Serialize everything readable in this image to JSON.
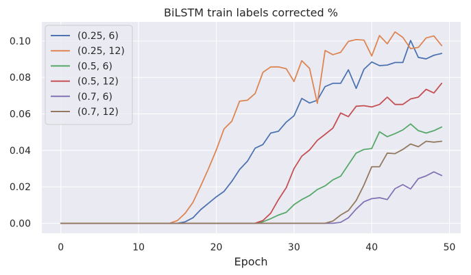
{
  "chart_data": {
    "type": "line",
    "title": "BiLSTM train labels corrected %",
    "xlabel": "Epoch",
    "ylabel": "",
    "xlim": [
      -2.45,
      51.45
    ],
    "ylim": [
      -0.0055,
      0.1105
    ],
    "xticks": [
      0,
      10,
      20,
      30,
      40,
      50
    ],
    "yticks": [
      0.0,
      0.02,
      0.04,
      0.06,
      0.08,
      0.1
    ],
    "ytick_labels": [
      "0.00",
      "0.02",
      "0.04",
      "0.06",
      "0.08",
      "0.10"
    ],
    "grid": true,
    "legend_position": "top-left",
    "x": [
      0,
      1,
      2,
      3,
      4,
      5,
      6,
      7,
      8,
      9,
      10,
      11,
      12,
      13,
      14,
      15,
      16,
      17,
      18,
      19,
      20,
      21,
      22,
      23,
      24,
      25,
      26,
      27,
      28,
      29,
      30,
      31,
      32,
      33,
      34,
      35,
      36,
      37,
      38,
      39,
      40,
      41,
      42,
      43,
      44,
      45,
      46,
      47,
      48,
      49
    ],
    "series": [
      {
        "name": "(0.25, 6)",
        "color": "#4c72b0",
        "values": [
          0,
          0,
          0,
          0,
          0,
          0,
          0,
          0,
          0,
          0,
          0,
          0,
          0,
          0,
          0,
          0,
          0.0008,
          0.003,
          0.0075,
          0.011,
          0.0145,
          0.0175,
          0.023,
          0.0295,
          0.034,
          0.0412,
          0.0432,
          0.0495,
          0.0505,
          0.0555,
          0.059,
          0.0685,
          0.066,
          0.0675,
          0.075,
          0.0768,
          0.0768,
          0.0842,
          0.074,
          0.0845,
          0.0885,
          0.0865,
          0.0868,
          0.0882,
          0.0882,
          0.1003,
          0.091,
          0.0902,
          0.0922,
          0.0932
        ]
      },
      {
        "name": "(0.25, 12)",
        "color": "#dd8452",
        "values": [
          0,
          0,
          0,
          0,
          0,
          0,
          0,
          0,
          0,
          0,
          0,
          0,
          0,
          0,
          0,
          0.0015,
          0.0055,
          0.0115,
          0.0205,
          0.03,
          0.0402,
          0.0518,
          0.056,
          0.067,
          0.0675,
          0.0712,
          0.0828,
          0.0858,
          0.0858,
          0.0848,
          0.0778,
          0.0892,
          0.085,
          0.0658,
          0.0948,
          0.0925,
          0.0938,
          0.0998,
          0.1008,
          0.1005,
          0.0918,
          0.103,
          0.0985,
          0.105,
          0.102,
          0.0958,
          0.0965,
          0.1017,
          0.1028,
          0.0975
        ]
      },
      {
        "name": "(0.5, 6)",
        "color": "#55a868",
        "values": [
          0,
          0,
          0,
          0,
          0,
          0,
          0,
          0,
          0,
          0,
          0,
          0,
          0,
          0,
          0,
          0,
          0,
          0,
          0,
          0,
          0,
          0,
          0,
          0,
          0,
          0,
          0.0008,
          0.0025,
          0.0045,
          0.006,
          0.0102,
          0.013,
          0.0152,
          0.0185,
          0.0205,
          0.0238,
          0.0258,
          0.0322,
          0.0385,
          0.0405,
          0.041,
          0.0502,
          0.0475,
          0.0492,
          0.0512,
          0.0545,
          0.0508,
          0.0495,
          0.0508,
          0.0528
        ]
      },
      {
        "name": "(0.5, 12)",
        "color": "#c44e52",
        "values": [
          0,
          0,
          0,
          0,
          0,
          0,
          0,
          0,
          0,
          0,
          0,
          0,
          0,
          0,
          0,
          0,
          0,
          0,
          0,
          0,
          0,
          0,
          0,
          0,
          0,
          0,
          0.0015,
          0.0055,
          0.013,
          0.0195,
          0.03,
          0.0368,
          0.0402,
          0.0455,
          0.0488,
          0.0522,
          0.0605,
          0.0585,
          0.0642,
          0.0645,
          0.0638,
          0.0652,
          0.0692,
          0.0652,
          0.0652,
          0.0682,
          0.0692,
          0.0735,
          0.0715,
          0.0768
        ]
      },
      {
        "name": "(0.7, 6)",
        "color": "#8172b3",
        "values": [
          0,
          0,
          0,
          0,
          0,
          0,
          0,
          0,
          0,
          0,
          0,
          0,
          0,
          0,
          0,
          0,
          0,
          0,
          0,
          0,
          0,
          0,
          0,
          0,
          0,
          0,
          0,
          0,
          0,
          0,
          0,
          0,
          0,
          0,
          0,
          0,
          0.0005,
          0.003,
          0.0078,
          0.0118,
          0.0135,
          0.014,
          0.013,
          0.019,
          0.0212,
          0.0188,
          0.0245,
          0.026,
          0.0282,
          0.0262
        ]
      },
      {
        "name": "(0.7, 12)",
        "color": "#937860",
        "values": [
          0,
          0,
          0,
          0,
          0,
          0,
          0,
          0,
          0,
          0,
          0,
          0,
          0,
          0,
          0,
          0,
          0,
          0,
          0,
          0,
          0,
          0,
          0,
          0,
          0,
          0,
          0,
          0,
          0,
          0,
          0,
          0,
          0,
          0,
          0,
          0.0012,
          0.0045,
          0.007,
          0.0125,
          0.021,
          0.031,
          0.031,
          0.0385,
          0.0382,
          0.0405,
          0.0435,
          0.042,
          0.045,
          0.0445,
          0.045
        ]
      }
    ]
  }
}
